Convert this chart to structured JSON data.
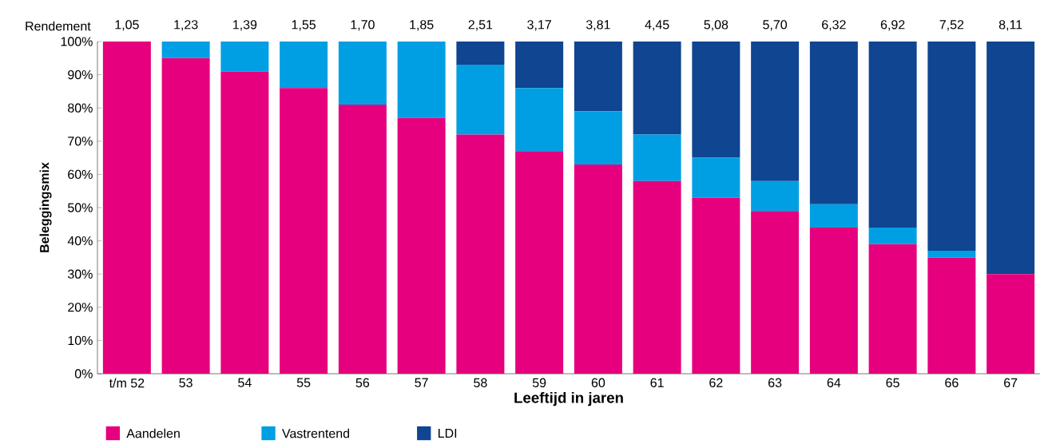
{
  "chart_data": {
    "type": "bar",
    "stacked": true,
    "xlabel": "Leeftijd in jaren",
    "ylabel": "Beleggingsmix",
    "categories": [
      "t/m 52",
      "53",
      "54",
      "55",
      "56",
      "57",
      "58",
      "59",
      "60",
      "61",
      "62",
      "63",
      "64",
      "65",
      "66",
      "67"
    ],
    "series": [
      {
        "name": "Aandelen",
        "color": "#e6007e",
        "values": [
          100,
          95,
          91,
          86,
          81,
          77,
          72,
          67,
          63,
          58,
          53,
          49,
          44,
          39,
          35,
          30
        ]
      },
      {
        "name": "Vastrentend",
        "color": "#009fe3",
        "values": [
          0,
          5,
          9,
          14,
          19,
          23,
          21,
          19,
          16,
          14,
          12,
          9,
          7,
          5,
          2,
          0
        ]
      },
      {
        "name": "LDI",
        "color": "#0f4591",
        "values": [
          0,
          0,
          0,
          0,
          0,
          0,
          7,
          14,
          21,
          28,
          35,
          42,
          49,
          56,
          63,
          70
        ]
      }
    ],
    "ylim": [
      0,
      100
    ],
    "yticks": [
      {
        "value": 0,
        "label": "0%"
      },
      {
        "value": 10,
        "label": "10%"
      },
      {
        "value": 20,
        "label": "20%"
      },
      {
        "value": 30,
        "label": "30%"
      },
      {
        "value": 40,
        "label": "40%"
      },
      {
        "value": 50,
        "label": "50%"
      },
      {
        "value": 60,
        "label": "60%"
      },
      {
        "value": 70,
        "label": "70%"
      },
      {
        "value": 80,
        "label": "80%"
      },
      {
        "value": 90,
        "label": "90%"
      },
      {
        "value": 100,
        "label": "100%"
      }
    ],
    "legend": "bottom left",
    "annotations": [
      "Rendement",
      "1,05",
      "1,23",
      "1,39",
      "1,55",
      "1,70",
      "1,85",
      "2,51",
      "3,17",
      "3,81",
      "4,45",
      "5,08",
      "5,70",
      "6,32",
      "6,92",
      "7,52",
      "8,11"
    ]
  }
}
